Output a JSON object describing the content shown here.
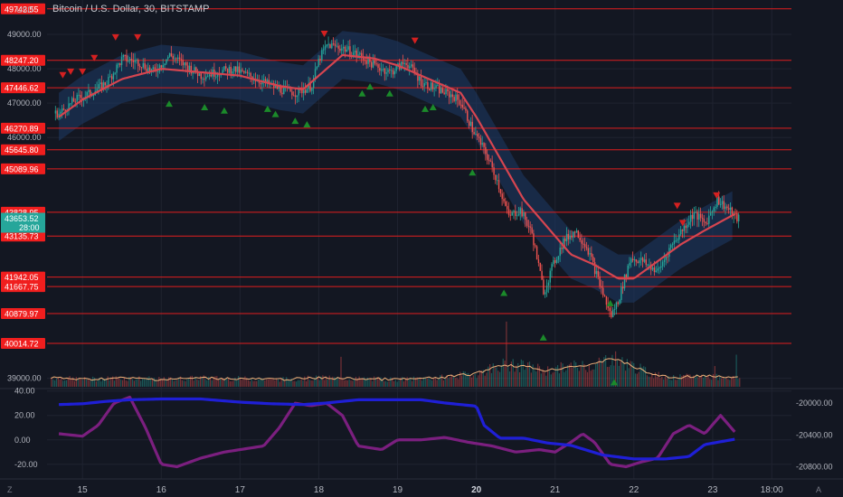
{
  "header": {
    "title": "Bitcoin / U.S. Dollar, 30, BITSTAMP",
    "currency": "USD"
  },
  "colors": {
    "background": "#131722",
    "grid": "#1f2330",
    "level_line": "#e01e1e",
    "level_tag": "#f01e1e",
    "up_candle": "#26a69a",
    "down_candle": "#ef5350",
    "ma_line": "#d64550",
    "band_fill": "#1e3a66",
    "volume_ma": "#f0b27a",
    "osc_purple": "#7b1f7f",
    "osc_blue": "#1f1fd6",
    "last_price_tag": "#26a69a",
    "up_arrow": "#1b8a2a",
    "down_arrow": "#d42020"
  },
  "chart_data": [
    {
      "type": "candlestick",
      "name": "price",
      "title": "Bitcoin / U.S. Dollar, 30, BITSTAMP",
      "y_axis_side": "left",
      "ylim": [
        38700,
        50000
      ],
      "y_ticks": [
        39000,
        46000,
        47000,
        48000,
        49000
      ],
      "x_ticks": [
        "15",
        "16",
        "17",
        "18",
        "19",
        "20",
        "21",
        "22",
        "23",
        "18:00"
      ],
      "horizontal_levels": [
        49742.55,
        48247.2,
        47446.62,
        46270.89,
        45645.8,
        45089.96,
        43828.95,
        43135.73,
        41942.05,
        41667.75,
        40879.97,
        40014.72
      ],
      "last_price": {
        "value": 43653.52,
        "countdown": "28:00"
      },
      "price_path": [
        [
          14.7,
          46700
        ],
        [
          14.9,
          47100
        ],
        [
          15.1,
          47300
        ],
        [
          15.3,
          47600
        ],
        [
          15.5,
          48300
        ],
        [
          15.7,
          48200
        ],
        [
          15.9,
          47900
        ],
        [
          16.1,
          48400
        ],
        [
          16.3,
          48100
        ],
        [
          16.5,
          47800
        ],
        [
          16.7,
          47900
        ],
        [
          16.9,
          48000
        ],
        [
          17.1,
          47800
        ],
        [
          17.3,
          47600
        ],
        [
          17.5,
          47400
        ],
        [
          17.7,
          47300
        ],
        [
          17.9,
          47500
        ],
        [
          18.0,
          48300
        ],
        [
          18.1,
          48700
        ],
        [
          18.3,
          48600
        ],
        [
          18.5,
          48400
        ],
        [
          18.7,
          48100
        ],
        [
          18.9,
          47900
        ],
        [
          19.1,
          48200
        ],
        [
          19.3,
          47600
        ],
        [
          19.5,
          47400
        ],
        [
          19.7,
          47200
        ],
        [
          19.8,
          47000
        ],
        [
          19.95,
          46200
        ],
        [
          20.1,
          45600
        ],
        [
          20.25,
          44800
        ],
        [
          20.4,
          43700
        ],
        [
          20.55,
          43900
        ],
        [
          20.7,
          43200
        ],
        [
          20.85,
          41500
        ],
        [
          20.95,
          42200
        ],
        [
          21.1,
          43000
        ],
        [
          21.25,
          43300
        ],
        [
          21.4,
          42800
        ],
        [
          21.55,
          41800
        ],
        [
          21.7,
          40800
        ],
        [
          21.8,
          41300
        ],
        [
          21.95,
          42500
        ],
        [
          22.1,
          42400
        ],
        [
          22.3,
          42100
        ],
        [
          22.45,
          42800
        ],
        [
          22.6,
          43300
        ],
        [
          22.75,
          43800
        ],
        [
          22.9,
          43500
        ],
        [
          23.05,
          44200
        ],
        [
          23.15,
          44000
        ],
        [
          23.3,
          43650
        ]
      ],
      "ma_path": [
        [
          14.7,
          46600
        ],
        [
          15.0,
          47100
        ],
        [
          15.5,
          47700
        ],
        [
          16.0,
          48000
        ],
        [
          16.5,
          47900
        ],
        [
          17.0,
          47800
        ],
        [
          17.5,
          47500
        ],
        [
          17.8,
          47400
        ],
        [
          18.0,
          47800
        ],
        [
          18.3,
          48400
        ],
        [
          18.7,
          48300
        ],
        [
          19.0,
          48100
        ],
        [
          19.4,
          47700
        ],
        [
          19.8,
          47300
        ],
        [
          20.0,
          46600
        ],
        [
          20.3,
          45400
        ],
        [
          20.6,
          44200
        ],
        [
          20.9,
          43400
        ],
        [
          21.2,
          42600
        ],
        [
          21.5,
          42300
        ],
        [
          21.8,
          41900
        ],
        [
          22.0,
          41900
        ],
        [
          22.3,
          42400
        ],
        [
          22.6,
          42900
        ],
        [
          22.9,
          43300
        ],
        [
          23.3,
          43800
        ]
      ],
      "band_width": 700,
      "down_arrows_at": [
        [
          14.75,
          47800
        ],
        [
          14.85,
          47900
        ],
        [
          15.0,
          47900
        ],
        [
          15.15,
          48300
        ],
        [
          15.42,
          48900
        ],
        [
          15.7,
          48900
        ],
        [
          18.07,
          49000
        ],
        [
          19.22,
          48800
        ],
        [
          22.55,
          44000
        ],
        [
          22.62,
          43500
        ],
        [
          23.05,
          44300
        ]
      ],
      "up_arrows_at": [
        [
          16.1,
          47000
        ],
        [
          16.55,
          46900
        ],
        [
          16.8,
          46800
        ],
        [
          17.35,
          46850
        ],
        [
          17.45,
          46700
        ],
        [
          17.7,
          46500
        ],
        [
          17.85,
          46400
        ],
        [
          18.55,
          47300
        ],
        [
          18.65,
          47500
        ],
        [
          18.9,
          47300
        ],
        [
          19.35,
          46850
        ],
        [
          19.45,
          46900
        ],
        [
          19.95,
          45000
        ],
        [
          20.35,
          41500
        ],
        [
          20.85,
          40200
        ],
        [
          21.7,
          41200
        ],
        [
          21.75,
          38900
        ]
      ],
      "volume_ma_path": [
        [
          14.7,
          0.12
        ],
        [
          15.0,
          0.1
        ],
        [
          15.5,
          0.12
        ],
        [
          16.0,
          0.1
        ],
        [
          16.5,
          0.12
        ],
        [
          17.0,
          0.11
        ],
        [
          17.5,
          0.1
        ],
        [
          18.0,
          0.12
        ],
        [
          18.5,
          0.11
        ],
        [
          19.0,
          0.1
        ],
        [
          19.5,
          0.12
        ],
        [
          20.0,
          0.18
        ],
        [
          20.3,
          0.3
        ],
        [
          20.6,
          0.28
        ],
        [
          20.9,
          0.22
        ],
        [
          21.2,
          0.28
        ],
        [
          21.5,
          0.3
        ],
        [
          21.7,
          0.4
        ],
        [
          21.9,
          0.32
        ],
        [
          22.2,
          0.18
        ],
        [
          22.5,
          0.12
        ],
        [
          22.8,
          0.15
        ],
        [
          23.0,
          0.14
        ],
        [
          23.3,
          0.12
        ]
      ]
    },
    {
      "type": "line",
      "name": "oscillator",
      "y_axis_left": {
        "ylim": [
          -32,
          42
        ],
        "ticks": [
          -20.0,
          0.0,
          20.0,
          40.0
        ]
      },
      "y_axis_right": {
        "ylim": [
          -20950,
          -19820
        ],
        "ticks": [
          -20000.0,
          -20400.0,
          -20800.0
        ]
      },
      "series": [
        {
          "axis": "left",
          "color": "#7b1f7f",
          "points": [
            [
              14.7,
              5
            ],
            [
              15.0,
              3
            ],
            [
              15.2,
              12
            ],
            [
              15.4,
              30
            ],
            [
              15.6,
              35
            ],
            [
              15.8,
              10
            ],
            [
              16.0,
              -20
            ],
            [
              16.2,
              -22
            ],
            [
              16.5,
              -15
            ],
            [
              16.8,
              -10
            ],
            [
              17.0,
              -8
            ],
            [
              17.3,
              -5
            ],
            [
              17.5,
              10
            ],
            [
              17.7,
              30
            ],
            [
              17.9,
              28
            ],
            [
              18.1,
              30
            ],
            [
              18.3,
              20
            ],
            [
              18.5,
              -5
            ],
            [
              18.8,
              -8
            ],
            [
              19.0,
              0
            ],
            [
              19.3,
              0
            ],
            [
              19.6,
              2
            ],
            [
              19.9,
              -2
            ],
            [
              20.2,
              -5
            ],
            [
              20.5,
              -10
            ],
            [
              20.8,
              -8
            ],
            [
              21.0,
              -10
            ],
            [
              21.2,
              -2
            ],
            [
              21.35,
              5
            ],
            [
              21.5,
              -2
            ],
            [
              21.7,
              -20
            ],
            [
              21.9,
              -22
            ],
            [
              22.1,
              -18
            ],
            [
              22.3,
              -15
            ],
            [
              22.5,
              5
            ],
            [
              22.7,
              12
            ],
            [
              22.9,
              5
            ],
            [
              23.1,
              20
            ],
            [
              23.3,
              5
            ]
          ]
        },
        {
          "axis": "right",
          "color": "#1f1fd6",
          "points": [
            [
              14.7,
              -20020
            ],
            [
              15.0,
              -20010
            ],
            [
              15.3,
              -19980
            ],
            [
              15.6,
              -19960
            ],
            [
              16.0,
              -19950
            ],
            [
              16.5,
              -19950
            ],
            [
              17.0,
              -19990
            ],
            [
              17.4,
              -20010
            ],
            [
              17.8,
              -20020
            ],
            [
              18.1,
              -20000
            ],
            [
              18.5,
              -19960
            ],
            [
              19.0,
              -19960
            ],
            [
              19.3,
              -19960
            ],
            [
              19.6,
              -20000
            ],
            [
              20.0,
              -20040
            ],
            [
              20.1,
              -20280
            ],
            [
              20.3,
              -20440
            ],
            [
              20.6,
              -20440
            ],
            [
              20.9,
              -20500
            ],
            [
              21.2,
              -20530
            ],
            [
              21.6,
              -20650
            ],
            [
              22.0,
              -20700
            ],
            [
              22.4,
              -20700
            ],
            [
              22.7,
              -20670
            ],
            [
              22.9,
              -20520
            ],
            [
              23.3,
              -20450
            ]
          ]
        }
      ]
    }
  ],
  "footer": {
    "left_icon": "Z",
    "right_icon": "A"
  }
}
